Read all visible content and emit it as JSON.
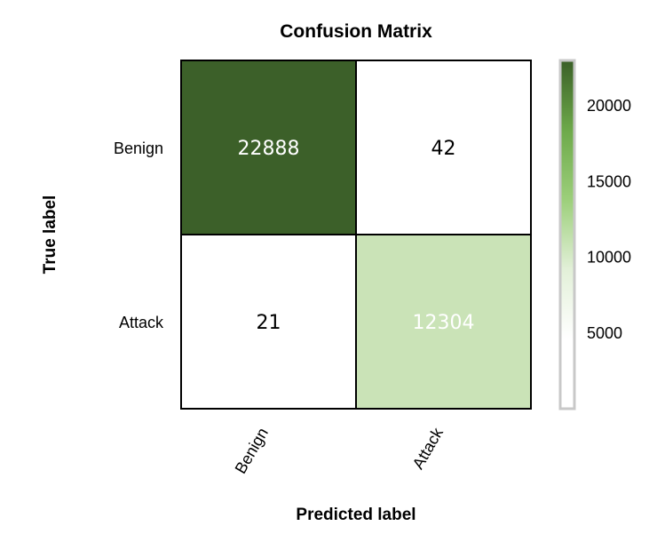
{
  "chart_data": {
    "type": "heatmap",
    "title": "Confusion Matrix",
    "xlabel": "Predicted label",
    "ylabel": "True label",
    "x_categories": [
      "Benign",
      "Attack"
    ],
    "y_categories": [
      "Benign",
      "Attack"
    ],
    "values": [
      [
        22888,
        42
      ],
      [
        21,
        12304
      ]
    ],
    "colorbar": {
      "ticks": [
        5000,
        10000,
        15000,
        20000
      ],
      "range": [
        0,
        23000
      ]
    },
    "colors": {
      "low": "#ffffff",
      "mid": "#c8e2b4",
      "high": "#3a5f27",
      "bar_stops": [
        "#ffffff",
        "#ffffff",
        "#e2f0d8",
        "#9ccf7a",
        "#6da94a",
        "#3a5f27"
      ]
    }
  }
}
